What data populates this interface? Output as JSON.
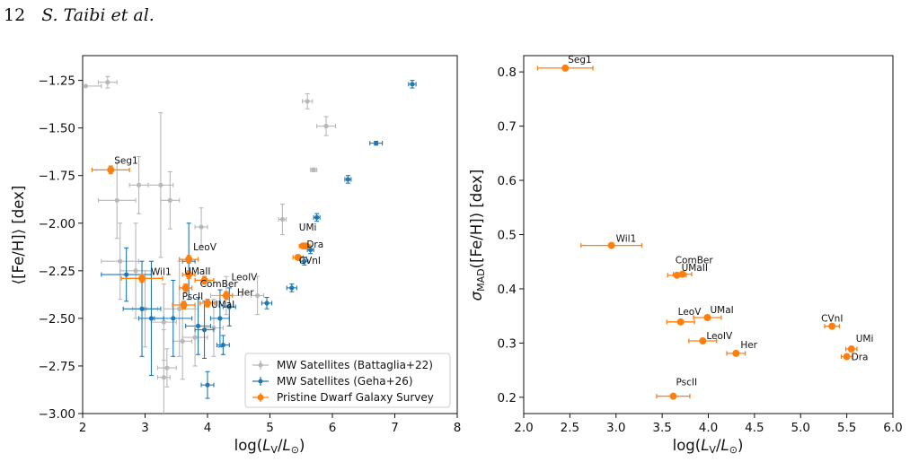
{
  "header": {
    "page_number": "12",
    "authors": "S. Taibi et al."
  },
  "chart_data": [
    {
      "type": "scatter",
      "xlabel": "log(L_V/L_⊙)",
      "ylabel": "⟨[Fe/H]⟩ [dex]",
      "xlim": [
        2,
        8
      ],
      "ylim": [
        -3.0,
        -1.12
      ],
      "xticks": [
        2,
        3,
        4,
        5,
        6,
        7,
        8
      ],
      "yticks": [
        -3.0,
        -2.75,
        -2.5,
        -2.25,
        -2.0,
        -1.75,
        -1.5,
        -1.25
      ],
      "ytick_labels": [
        "−3.00",
        "−2.75",
        "−2.50",
        "−2.25",
        "−2.00",
        "−1.75",
        "−1.50",
        "−1.25"
      ],
      "grid": false,
      "legend_position": "bottom-right",
      "series": [
        {
          "name": "MW Satellites (Battaglia+22)",
          "color": "#b8b8b8",
          "points": [
            {
              "x": 2.4,
              "y": -1.26,
              "xerr": 0.15,
              "yerr": 0.03
            },
            {
              "x": 2.05,
              "y": -1.28,
              "xerr": 0.25,
              "yerr": 0.0
            },
            {
              "x": 5.6,
              "y": -1.36,
              "xerr": 0.08,
              "yerr": 0.04
            },
            {
              "x": 5.9,
              "y": -1.49,
              "xerr": 0.15,
              "yerr": 0.05
            },
            {
              "x": 5.7,
              "y": -1.72,
              "xerr": 0.05,
              "yerr": 0.01
            },
            {
              "x": 2.55,
              "y": -1.88,
              "xerr": 0.3,
              "yerr": 0.2
            },
            {
              "x": 2.9,
              "y": -1.8,
              "xerr": 0.15,
              "yerr": 0.15
            },
            {
              "x": 3.25,
              "y": -1.8,
              "xerr": 0.2,
              "yerr": 0.38
            },
            {
              "x": 3.4,
              "y": -1.88,
              "xerr": 0.15,
              "yerr": 0.15
            },
            {
              "x": 3.9,
              "y": -2.02,
              "xerr": 0.1,
              "yerr": 0.1
            },
            {
              "x": 5.2,
              "y": -1.98,
              "xerr": 0.06,
              "yerr": 0.08
            },
            {
              "x": 2.6,
              "y": -2.2,
              "xerr": 0.3,
              "yerr": 0.2
            },
            {
              "x": 2.85,
              "y": -2.25,
              "xerr": 0.25,
              "yerr": 0.25
            },
            {
              "x": 3.0,
              "y": -2.45,
              "xerr": 0.2,
              "yerr": 0.2
            },
            {
              "x": 3.3,
              "y": -2.52,
              "xerr": 0.2,
              "yerr": 0.2
            },
            {
              "x": 3.55,
              "y": -2.45,
              "xerr": 0.25,
              "yerr": 0.25
            },
            {
              "x": 3.8,
              "y": -2.6,
              "xerr": 0.2,
              "yerr": 0.15
            },
            {
              "x": 4.1,
              "y": -2.55,
              "xerr": 0.15,
              "yerr": 0.15
            },
            {
              "x": 4.3,
              "y": -2.38,
              "xerr": 0.25,
              "yerr": 0.1
            },
            {
              "x": 4.8,
              "y": -2.38,
              "xerr": 0.1,
              "yerr": 0.1
            },
            {
              "x": 3.35,
              "y": -2.76,
              "xerr": 0.15,
              "yerr": 0.1
            },
            {
              "x": 3.3,
              "y": -2.81,
              "xerr": 0.1,
              "yerr": 0.25
            },
            {
              "x": 3.6,
              "y": -2.62,
              "xerr": 0.15,
              "yerr": 0.2
            }
          ]
        },
        {
          "name": "MW Satellites (Geha+26)",
          "color": "#1f77b4",
          "points": [
            {
              "x": 7.28,
              "y": -1.27,
              "xerr": 0.06,
              "yerr": 0.02
            },
            {
              "x": 6.7,
              "y": -1.58,
              "xerr": 0.1,
              "yerr": 0.01
            },
            {
              "x": 6.25,
              "y": -1.77,
              "xerr": 0.05,
              "yerr": 0.02
            },
            {
              "x": 5.75,
              "y": -1.97,
              "xerr": 0.05,
              "yerr": 0.02
            },
            {
              "x": 5.55,
              "y": -2.2,
              "xerr": 0.06,
              "yerr": 0.02
            },
            {
              "x": 5.65,
              "y": -2.14,
              "xerr": 0.05,
              "yerr": 0.02
            },
            {
              "x": 5.35,
              "y": -2.34,
              "xerr": 0.08,
              "yerr": 0.02
            },
            {
              "x": 4.95,
              "y": -2.42,
              "xerr": 0.08,
              "yerr": 0.03
            },
            {
              "x": 2.7,
              "y": -2.27,
              "xerr": 0.4,
              "yerr": 0.14
            },
            {
              "x": 2.95,
              "y": -2.45,
              "xerr": 0.3,
              "yerr": 0.25
            },
            {
              "x": 3.1,
              "y": -2.5,
              "xerr": 0.2,
              "yerr": 0.3
            },
            {
              "x": 3.45,
              "y": -2.5,
              "xerr": 0.3,
              "yerr": 0.2
            },
            {
              "x": 3.7,
              "y": -2.2,
              "xerr": 0.1,
              "yerr": 0.2
            },
            {
              "x": 3.85,
              "y": -2.54,
              "xerr": 0.2,
              "yerr": 0.15
            },
            {
              "x": 3.95,
              "y": -2.56,
              "xerr": 0.15,
              "yerr": 0.15
            },
            {
              "x": 4.2,
              "y": -2.5,
              "xerr": 0.15,
              "yerr": 0.15
            },
            {
              "x": 4.25,
              "y": -2.64,
              "xerr": 0.1,
              "yerr": 0.05
            },
            {
              "x": 4.35,
              "y": -2.44,
              "xerr": 0.1,
              "yerr": 0.1
            },
            {
              "x": 4.0,
              "y": -2.85,
              "xerr": 0.1,
              "yerr": 0.07
            }
          ]
        },
        {
          "name": "Pristine Dwarf Galaxy Survey",
          "color": "#ff7f0e",
          "points": [
            {
              "label": "Seg1",
              "x": 2.45,
              "y": -1.72,
              "xerr": 0.3,
              "yerr": 0.02
            },
            {
              "label": "Wil1",
              "x": 2.95,
              "y": -2.29,
              "xerr": 0.33,
              "yerr": 0.02
            },
            {
              "label": "LeoV",
              "x": 3.7,
              "y": -2.19,
              "xerr": 0.15,
              "yerr": 0.02
            },
            {
              "label": "UMaII",
              "x": 3.7,
              "y": -2.27,
              "xerr": 0.1,
              "yerr": 0.02
            },
            {
              "label": "LeoIV",
              "x": 3.95,
              "y": -2.3,
              "xerr": 0.15,
              "yerr": 0.02
            },
            {
              "label": "ComBer",
              "x": 3.65,
              "y": -2.34,
              "xerr": 0.1,
              "yerr": 0.02
            },
            {
              "label": "PscII",
              "x": 3.62,
              "y": -2.43,
              "xerr": 0.18,
              "yerr": 0.02
            },
            {
              "label": "UMaI",
              "x": 4.0,
              "y": -2.42,
              "xerr": 0.12,
              "yerr": 0.02
            },
            {
              "label": "Her",
              "x": 4.3,
              "y": -2.38,
              "xerr": 0.1,
              "yerr": 0.02
            },
            {
              "label": "CVnI",
              "x": 5.45,
              "y": -2.18,
              "xerr": 0.08,
              "yerr": 0.01
            },
            {
              "label": "Dra",
              "x": 5.53,
              "y": -2.12,
              "xerr": 0.06,
              "yerr": 0.01
            },
            {
              "label": "UMi",
              "x": 5.58,
              "y": -2.12,
              "xerr": 0.06,
              "yerr": 0.01
            }
          ]
        }
      ]
    },
    {
      "type": "scatter",
      "xlabel": "log(L_V/L_⊙)",
      "ylabel": "σ_MAD([Fe/H]) [dex]",
      "xlim": [
        2.0,
        6.0
      ],
      "ylim": [
        0.17,
        0.83
      ],
      "xticks": [
        2.0,
        2.5,
        3.0,
        3.5,
        4.0,
        4.5,
        5.0,
        5.5,
        6.0
      ],
      "xtick_labels": [
        "2.0",
        "2.5",
        "3.0",
        "3.5",
        "4.0",
        "4.5",
        "5.0",
        "5.5",
        "6.0"
      ],
      "yticks": [
        0.2,
        0.3,
        0.4,
        0.5,
        0.6,
        0.7,
        0.8
      ],
      "ytick_labels": [
        "0.2",
        "0.3",
        "0.4",
        "0.5",
        "0.6",
        "0.7",
        "0.8"
      ],
      "grid": false,
      "series": [
        {
          "name": "Pristine Dwarf Galaxy Survey",
          "color": "#ff7f0e",
          "points": [
            {
              "label": "Seg1",
              "x": 2.45,
              "y": 0.807,
              "xerr": 0.3,
              "yerr": 0.0
            },
            {
              "label": "Wil1",
              "x": 2.95,
              "y": 0.48,
              "xerr": 0.33,
              "yerr": 0.0
            },
            {
              "label": "ComBer",
              "x": 3.72,
              "y": 0.427,
              "xerr": 0.1,
              "yerr": 0.0
            },
            {
              "label": "UMaII",
              "x": 3.66,
              "y": 0.425,
              "xerr": 0.1,
              "yerr": 0.0
            },
            {
              "label": "LeoV",
              "x": 3.7,
              "y": 0.339,
              "xerr": 0.15,
              "yerr": 0.0
            },
            {
              "label": "UMaI",
              "x": 3.99,
              "y": 0.347,
              "xerr": 0.15,
              "yerr": 0.0
            },
            {
              "label": "LeoIV",
              "x": 3.94,
              "y": 0.304,
              "xerr": 0.15,
              "yerr": 0.0
            },
            {
              "label": "Her",
              "x": 4.3,
              "y": 0.281,
              "xerr": 0.1,
              "yerr": 0.0
            },
            {
              "label": "PscII",
              "x": 3.62,
              "y": 0.202,
              "xerr": 0.18,
              "yerr": 0.0
            },
            {
              "label": "CVnI",
              "x": 5.34,
              "y": 0.331,
              "xerr": 0.08,
              "yerr": 0.0
            },
            {
              "label": "UMi",
              "x": 5.55,
              "y": 0.289,
              "xerr": 0.06,
              "yerr": 0.0
            },
            {
              "label": "Dra",
              "x": 5.5,
              "y": 0.275,
              "xerr": 0.06,
              "yerr": 0.0
            }
          ]
        }
      ]
    }
  ]
}
